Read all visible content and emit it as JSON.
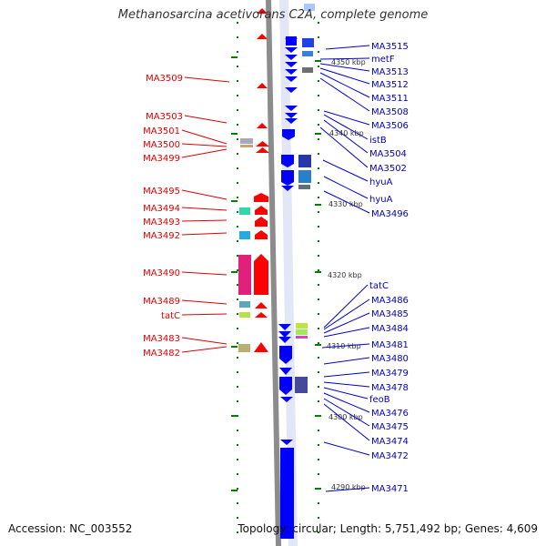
{
  "title": "Methanosarcina acetivorans C2A, complete genome",
  "accession": "Accession: NC_003552",
  "summary": "Topology: circular; Length: 5,751,492 bp; Genes: 4,609",
  "colors": {
    "forward_gene": "#ff0000",
    "reverse_gene": "#0000ff",
    "left_label": "#e00000",
    "right_label": "#0000c8",
    "backbone": "#909090",
    "tick": "#008000"
  },
  "kbp_markers": [
    {
      "kbp": 4350,
      "label": "4350 kbp"
    },
    {
      "kbp": 4340,
      "label": "4340 kbp"
    },
    {
      "kbp": 4330,
      "label": "4330 kbp"
    },
    {
      "kbp": 4320,
      "label": "4320 kbp"
    },
    {
      "kbp": 4310,
      "label": "4310 kbp"
    },
    {
      "kbp": 4300,
      "label": "4300 kbp"
    },
    {
      "kbp": 4290,
      "label": "4290 kbp"
    }
  ],
  "forward_labels": [
    "MA3509",
    "MA3503",
    "MA3501",
    "MA3500",
    "MA3499",
    "MA3495",
    "MA3494",
    "MA3493",
    "MA3492",
    "MA3490",
    "MA3489",
    "tatC",
    "MA3483",
    "MA3482"
  ],
  "reverse_labels": [
    "MA3515",
    "metF",
    "MA3513",
    "MA3512",
    "MA3511",
    "MA3508",
    "MA3506",
    "istB",
    "MA3504",
    "MA3502",
    "hyuA",
    "hyuA",
    "MA3496",
    "tatC",
    "MA3486",
    "MA3485",
    "MA3484",
    "MA3481",
    "MA3480",
    "MA3479",
    "MA3478",
    "feoB",
    "MA3476",
    "MA3475",
    "MA3474",
    "MA3472",
    "MA3471"
  ]
}
